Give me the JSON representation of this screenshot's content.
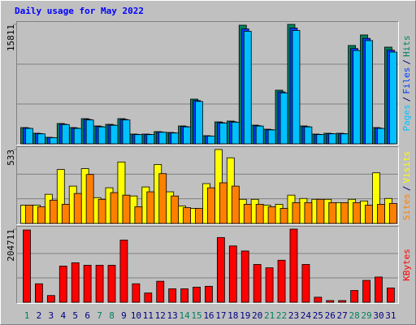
{
  "title": "Daily usage for May 2022",
  "title_color": "#0000ff",
  "legend_separator": "/",
  "chart_data": [
    {
      "type": "bar",
      "ylim": [
        0,
        15811
      ],
      "yticks": [
        15811
      ],
      "series": [
        {
          "name": "Hits",
          "color": "#008060",
          "values": [
            2151,
            1398,
            860,
            2689,
            2151,
            3334,
            2366,
            2581,
            3334,
            1291,
            1291,
            1613,
            1506,
            2366,
            5916,
            1076,
            2904,
            3012,
            15703,
            2474,
            1936,
            7099,
            15811,
            2366,
            1291,
            1398,
            1398,
            13015,
            14413,
            2151,
            12800
          ]
        },
        {
          "name": "Files",
          "color": "#0040ff",
          "values": [
            2080,
            1350,
            830,
            2600,
            2080,
            3230,
            2290,
            2500,
            3230,
            1250,
            1250,
            1560,
            1460,
            2290,
            5730,
            1040,
            2810,
            2920,
            15210,
            2400,
            1880,
            6880,
            15320,
            2290,
            1250,
            1350,
            1350,
            12610,
            13960,
            2080,
            12400
          ]
        },
        {
          "name": "Pages",
          "color": "#00c0ff",
          "values": [
            2040,
            1320,
            810,
            2550,
            2040,
            3160,
            2240,
            2450,
            3160,
            1220,
            1220,
            1530,
            1430,
            2240,
            5610,
            1020,
            2750,
            2860,
            14900,
            2350,
            1840,
            6740,
            15000,
            2240,
            1220,
            1320,
            1320,
            12350,
            13670,
            2040,
            12150
          ]
        }
      ]
    },
    {
      "type": "bar",
      "ylim": [
        0,
        533
      ],
      "yticks": [
        533
      ],
      "series": [
        {
          "name": "Visits",
          "color": "#ffff00",
          "values": [
            132,
            132,
            210,
            389,
            269,
            395,
            186,
            257,
            443,
            198,
            263,
            425,
            228,
            126,
            108,
            287,
            533,
            473,
            174,
            174,
            132,
            138,
            204,
            180,
            174,
            174,
            150,
            174,
            162,
            365,
            180
          ]
        },
        {
          "name": "Sites",
          "color": "#ff8000",
          "values": [
            132,
            120,
            168,
            138,
            216,
            353,
            174,
            222,
            204,
            120,
            228,
            359,
            198,
            114,
            108,
            257,
            293,
            269,
            138,
            138,
            120,
            108,
            150,
            150,
            174,
            150,
            150,
            150,
            132,
            138,
            144
          ]
        }
      ]
    },
    {
      "type": "bar",
      "ylim": [
        0,
        204711
      ],
      "yticks": [
        204711
      ],
      "categories": [
        "1",
        "2",
        "3",
        "4",
        "5",
        "6",
        "7",
        "8",
        "9",
        "10",
        "11",
        "12",
        "13",
        "14",
        "15",
        "16",
        "17",
        "18",
        "19",
        "20",
        "21",
        "22",
        "23",
        "24",
        "25",
        "26",
        "27",
        "28",
        "29",
        "30",
        "31"
      ],
      "label_colors": [
        "#008060",
        "#000080",
        "#000080",
        "#000080",
        "#000080",
        "#000080",
        "#008060",
        "#008060",
        "#000080",
        "#000080",
        "#000080",
        "#000080",
        "#000080",
        "#008060",
        "#008060",
        "#000080",
        "#000080",
        "#000080",
        "#000080",
        "#000080",
        "#008060",
        "#008060",
        "#000080",
        "#000080",
        "#000080",
        "#000080",
        "#000080",
        "#008060",
        "#008060",
        "#000080",
        "#000080"
      ],
      "series": [
        {
          "name": "KBytes",
          "color": "#ff0000",
          "values": [
            202358,
            51766,
            18824,
            101180,
            110592,
            103533,
            103533,
            103533,
            174121,
            51766,
            25883,
            58825,
            37648,
            37648,
            42354,
            44707,
            181180,
            157650,
            143531,
            105886,
            96474,
            117651,
            204711,
            105886,
            14118,
            4706,
            4706,
            32942,
            61178,
            70591,
            40001
          ]
        }
      ]
    }
  ]
}
